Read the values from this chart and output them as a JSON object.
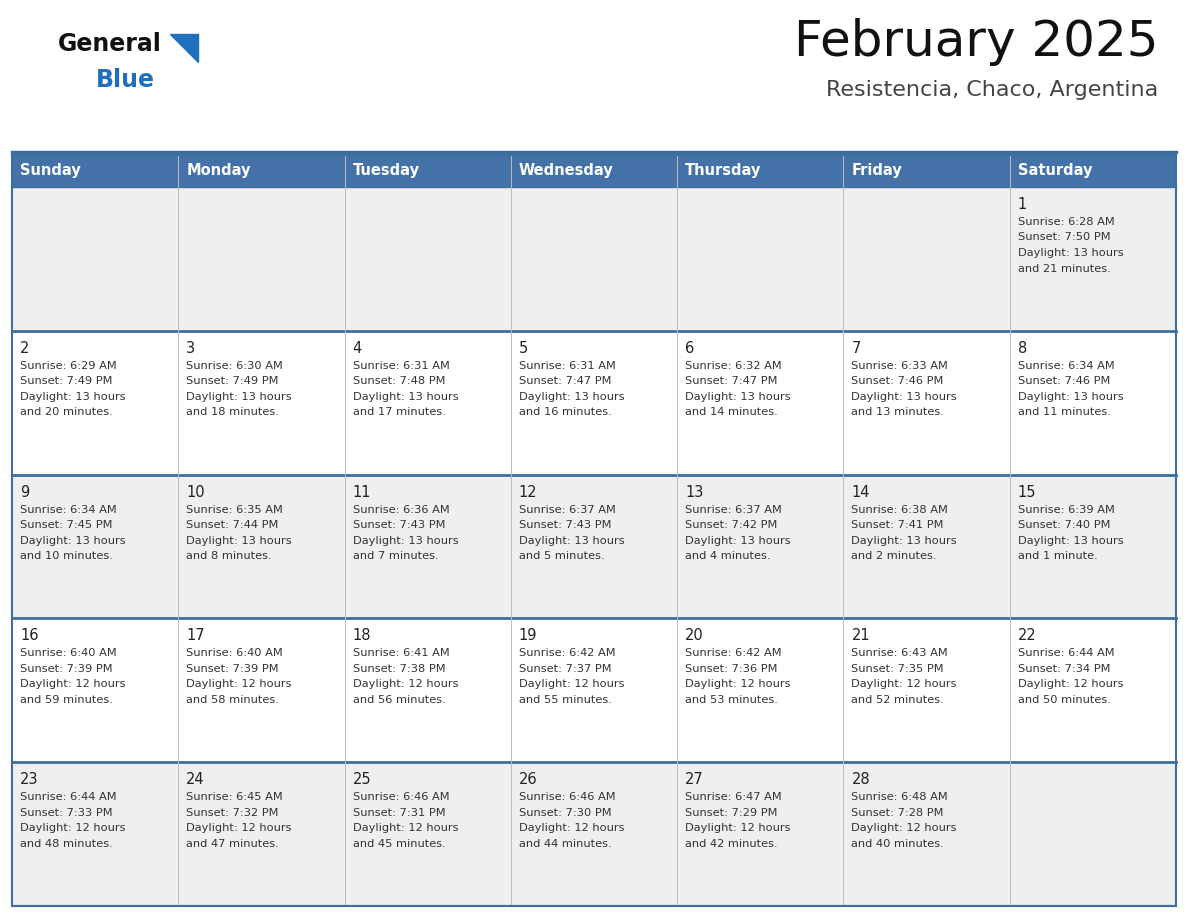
{
  "title": "February 2025",
  "subtitle": "Resistencia, Chaco, Argentina",
  "header_bg": "#4472a8",
  "header_text_color": "#ffffff",
  "row_bg_odd": "#efefef",
  "row_bg_even": "#ffffff",
  "day_headers": [
    "Sunday",
    "Monday",
    "Tuesday",
    "Wednesday",
    "Thursday",
    "Friday",
    "Saturday"
  ],
  "separator_color": "#3d6ea0",
  "day_number_color": "#222222",
  "day_info_color": "#333333",
  "title_color": "#111111",
  "subtitle_color": "#444444",
  "logo_general_color": "#111111",
  "logo_blue_color": "#1f6fbf",
  "calendar_data": [
    [
      null,
      null,
      null,
      null,
      null,
      null,
      {
        "day": "1",
        "sunrise": "6:28 AM",
        "sunset": "7:50 PM",
        "daylight_line1": "Daylight: 13 hours",
        "daylight_line2": "and 21 minutes."
      }
    ],
    [
      {
        "day": "2",
        "sunrise": "6:29 AM",
        "sunset": "7:49 PM",
        "daylight_line1": "Daylight: 13 hours",
        "daylight_line2": "and 20 minutes."
      },
      {
        "day": "3",
        "sunrise": "6:30 AM",
        "sunset": "7:49 PM",
        "daylight_line1": "Daylight: 13 hours",
        "daylight_line2": "and 18 minutes."
      },
      {
        "day": "4",
        "sunrise": "6:31 AM",
        "sunset": "7:48 PM",
        "daylight_line1": "Daylight: 13 hours",
        "daylight_line2": "and 17 minutes."
      },
      {
        "day": "5",
        "sunrise": "6:31 AM",
        "sunset": "7:47 PM",
        "daylight_line1": "Daylight: 13 hours",
        "daylight_line2": "and 16 minutes."
      },
      {
        "day": "6",
        "sunrise": "6:32 AM",
        "sunset": "7:47 PM",
        "daylight_line1": "Daylight: 13 hours",
        "daylight_line2": "and 14 minutes."
      },
      {
        "day": "7",
        "sunrise": "6:33 AM",
        "sunset": "7:46 PM",
        "daylight_line1": "Daylight: 13 hours",
        "daylight_line2": "and 13 minutes."
      },
      {
        "day": "8",
        "sunrise": "6:34 AM",
        "sunset": "7:46 PM",
        "daylight_line1": "Daylight: 13 hours",
        "daylight_line2": "and 11 minutes."
      }
    ],
    [
      {
        "day": "9",
        "sunrise": "6:34 AM",
        "sunset": "7:45 PM",
        "daylight_line1": "Daylight: 13 hours",
        "daylight_line2": "and 10 minutes."
      },
      {
        "day": "10",
        "sunrise": "6:35 AM",
        "sunset": "7:44 PM",
        "daylight_line1": "Daylight: 13 hours",
        "daylight_line2": "and 8 minutes."
      },
      {
        "day": "11",
        "sunrise": "6:36 AM",
        "sunset": "7:43 PM",
        "daylight_line1": "Daylight: 13 hours",
        "daylight_line2": "and 7 minutes."
      },
      {
        "day": "12",
        "sunrise": "6:37 AM",
        "sunset": "7:43 PM",
        "daylight_line1": "Daylight: 13 hours",
        "daylight_line2": "and 5 minutes."
      },
      {
        "day": "13",
        "sunrise": "6:37 AM",
        "sunset": "7:42 PM",
        "daylight_line1": "Daylight: 13 hours",
        "daylight_line2": "and 4 minutes."
      },
      {
        "day": "14",
        "sunrise": "6:38 AM",
        "sunset": "7:41 PM",
        "daylight_line1": "Daylight: 13 hours",
        "daylight_line2": "and 2 minutes."
      },
      {
        "day": "15",
        "sunrise": "6:39 AM",
        "sunset": "7:40 PM",
        "daylight_line1": "Daylight: 13 hours",
        "daylight_line2": "and 1 minute."
      }
    ],
    [
      {
        "day": "16",
        "sunrise": "6:40 AM",
        "sunset": "7:39 PM",
        "daylight_line1": "Daylight: 12 hours",
        "daylight_line2": "and 59 minutes."
      },
      {
        "day": "17",
        "sunrise": "6:40 AM",
        "sunset": "7:39 PM",
        "daylight_line1": "Daylight: 12 hours",
        "daylight_line2": "and 58 minutes."
      },
      {
        "day": "18",
        "sunrise": "6:41 AM",
        "sunset": "7:38 PM",
        "daylight_line1": "Daylight: 12 hours",
        "daylight_line2": "and 56 minutes."
      },
      {
        "day": "19",
        "sunrise": "6:42 AM",
        "sunset": "7:37 PM",
        "daylight_line1": "Daylight: 12 hours",
        "daylight_line2": "and 55 minutes."
      },
      {
        "day": "20",
        "sunrise": "6:42 AM",
        "sunset": "7:36 PM",
        "daylight_line1": "Daylight: 12 hours",
        "daylight_line2": "and 53 minutes."
      },
      {
        "day": "21",
        "sunrise": "6:43 AM",
        "sunset": "7:35 PM",
        "daylight_line1": "Daylight: 12 hours",
        "daylight_line2": "and 52 minutes."
      },
      {
        "day": "22",
        "sunrise": "6:44 AM",
        "sunset": "7:34 PM",
        "daylight_line1": "Daylight: 12 hours",
        "daylight_line2": "and 50 minutes."
      }
    ],
    [
      {
        "day": "23",
        "sunrise": "6:44 AM",
        "sunset": "7:33 PM",
        "daylight_line1": "Daylight: 12 hours",
        "daylight_line2": "and 48 minutes."
      },
      {
        "day": "24",
        "sunrise": "6:45 AM",
        "sunset": "7:32 PM",
        "daylight_line1": "Daylight: 12 hours",
        "daylight_line2": "and 47 minutes."
      },
      {
        "day": "25",
        "sunrise": "6:46 AM",
        "sunset": "7:31 PM",
        "daylight_line1": "Daylight: 12 hours",
        "daylight_line2": "and 45 minutes."
      },
      {
        "day": "26",
        "sunrise": "6:46 AM",
        "sunset": "7:30 PM",
        "daylight_line1": "Daylight: 12 hours",
        "daylight_line2": "and 44 minutes."
      },
      {
        "day": "27",
        "sunrise": "6:47 AM",
        "sunset": "7:29 PM",
        "daylight_line1": "Daylight: 12 hours",
        "daylight_line2": "and 42 minutes."
      },
      {
        "day": "28",
        "sunrise": "6:48 AM",
        "sunset": "7:28 PM",
        "daylight_line1": "Daylight: 12 hours",
        "daylight_line2": "and 40 minutes."
      },
      null
    ]
  ]
}
